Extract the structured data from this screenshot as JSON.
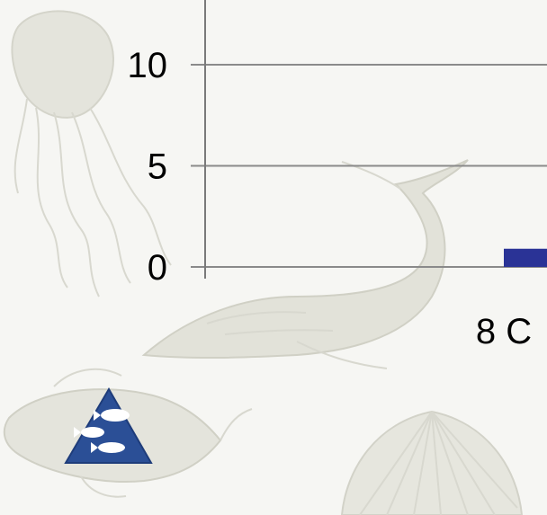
{
  "chart_data": {
    "type": "bar",
    "categories": [
      "8 C"
    ],
    "series": [
      {
        "values": [
          0.9
        ]
      }
    ],
    "ylim": [
      0,
      12.5
    ],
    "yticks": [
      0,
      5,
      10
    ],
    "grid": true,
    "bar_color": "#2a3396",
    "title": "",
    "xlabel": "",
    "ylabel": ""
  },
  "colors": {
    "background": "#f6f6f3",
    "gridline": "#8a8a8a",
    "axis": "#7a7a7a",
    "watermark": "#d9d9d1",
    "logo_blue": "#2b4f96"
  },
  "watermark": {
    "motifs": [
      "jellyfish-icon",
      "whale-icon",
      "fish-icon",
      "scallop-shell-icon"
    ]
  },
  "logo": {
    "icon": "triangle-fish-logo-icon"
  }
}
